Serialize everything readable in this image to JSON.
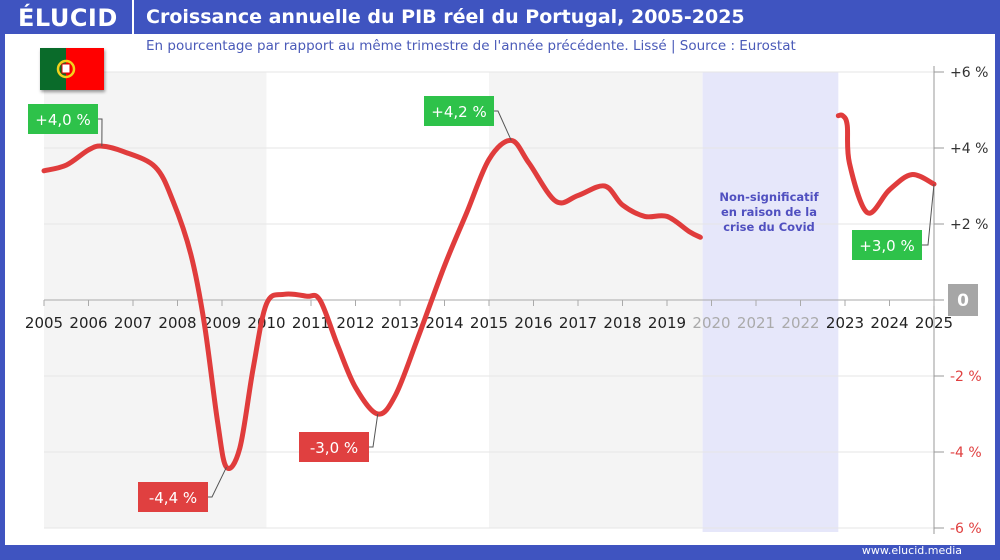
{
  "header": {
    "logo": "ÉLUCID",
    "title": "Croissance annuelle du PIB réel du Portugal, 2005-2025"
  },
  "subtitle": "En pourcentage par rapport au même trimestre de l'année précédente. Lissé  |  Source : Eurostat",
  "footer": "www.elucid.media",
  "covid_note": [
    "Non-significatif",
    "en raison de la",
    "crise du Covid"
  ],
  "colors": {
    "frame": "#3f54c0",
    "line": "#e03c3c",
    "positive": "#2ec24a",
    "negative": "#e04040",
    "covid": "#e6e7fa",
    "zero_badge": "#a6a6a6"
  },
  "chart_data": {
    "type": "line",
    "xlim": [
      2005,
      2025
    ],
    "ylim": [
      -6,
      6
    ],
    "x_ticks": [
      "2005",
      "2006",
      "2007",
      "2008",
      "2009",
      "2010",
      "2011",
      "2012",
      "2013",
      "2014",
      "2015",
      "2016",
      "2017",
      "2018",
      "2019",
      "2020",
      "2021",
      "2022",
      "2023",
      "2024",
      "2025"
    ],
    "y_ticks": [
      {
        "v": 6,
        "label": "+6 %"
      },
      {
        "v": 4,
        "label": "+4 %"
      },
      {
        "v": 2,
        "label": "+2 %"
      },
      {
        "v": 0,
        "label": "0"
      },
      {
        "v": -2,
        "label": "-2 %"
      },
      {
        "v": -4,
        "label": "-4 %"
      },
      {
        "v": -6,
        "label": "-6 %"
      }
    ],
    "segments": [
      [
        [
          2005,
          3.4
        ],
        [
          2005.5,
          3.55
        ],
        [
          2006,
          3.95
        ],
        [
          2006.3,
          4.05
        ],
        [
          2006.8,
          3.9
        ],
        [
          2007.5,
          3.5
        ],
        [
          2007.9,
          2.6
        ],
        [
          2008.3,
          1.2
        ],
        [
          2008.6,
          -0.6
        ],
        [
          2008.9,
          -3.2
        ],
        [
          2009.1,
          -4.4
        ],
        [
          2009.4,
          -3.9
        ],
        [
          2009.7,
          -1.8
        ],
        [
          2010,
          -0.1
        ],
        [
          2010.4,
          0.15
        ],
        [
          2010.9,
          0.1
        ],
        [
          2011.2,
          0.0
        ],
        [
          2011.6,
          -1.2
        ],
        [
          2012,
          -2.3
        ],
        [
          2012.5,
          -3.0
        ],
        [
          2012.9,
          -2.5
        ],
        [
          2013.4,
          -1.0
        ],
        [
          2014,
          0.9
        ],
        [
          2014.5,
          2.3
        ],
        [
          2015,
          3.7
        ],
        [
          2015.5,
          4.2
        ],
        [
          2015.9,
          3.6
        ],
        [
          2016.5,
          2.6
        ],
        [
          2017,
          2.75
        ],
        [
          2017.6,
          3.0
        ],
        [
          2018,
          2.5
        ],
        [
          2018.5,
          2.2
        ],
        [
          2019,
          2.2
        ],
        [
          2019.5,
          1.8
        ],
        [
          2019.75,
          1.65
        ]
      ],
      [
        [
          2022.85,
          4.85
        ],
        [
          2022.95,
          4.85
        ],
        [
          2023.05,
          4.6
        ],
        [
          2023.1,
          3.6
        ],
        [
          2023.5,
          2.3
        ],
        [
          2024,
          2.9
        ],
        [
          2024.5,
          3.3
        ],
        [
          2025,
          3.05
        ]
      ]
    ],
    "shaded_periods": [
      [
        2005,
        2010
      ],
      [
        2015,
        2019.8
      ]
    ],
    "covid_period": [
      2019.8,
      2022.85
    ],
    "annotations": [
      {
        "label": "+4,0 %",
        "x": 2006.3,
        "y": 4.05,
        "kind": "positive"
      },
      {
        "label": "-4,4 %",
        "x": 2009.1,
        "y": -4.4,
        "kind": "negative"
      },
      {
        "label": "-3,0 %",
        "x": 2012.5,
        "y": -3.0,
        "kind": "negative"
      },
      {
        "label": "+4,2 %",
        "x": 2015.5,
        "y": 4.2,
        "kind": "positive"
      },
      {
        "label": "+3,0 %",
        "x": 2025,
        "y": 3.05,
        "kind": "positive"
      }
    ]
  }
}
